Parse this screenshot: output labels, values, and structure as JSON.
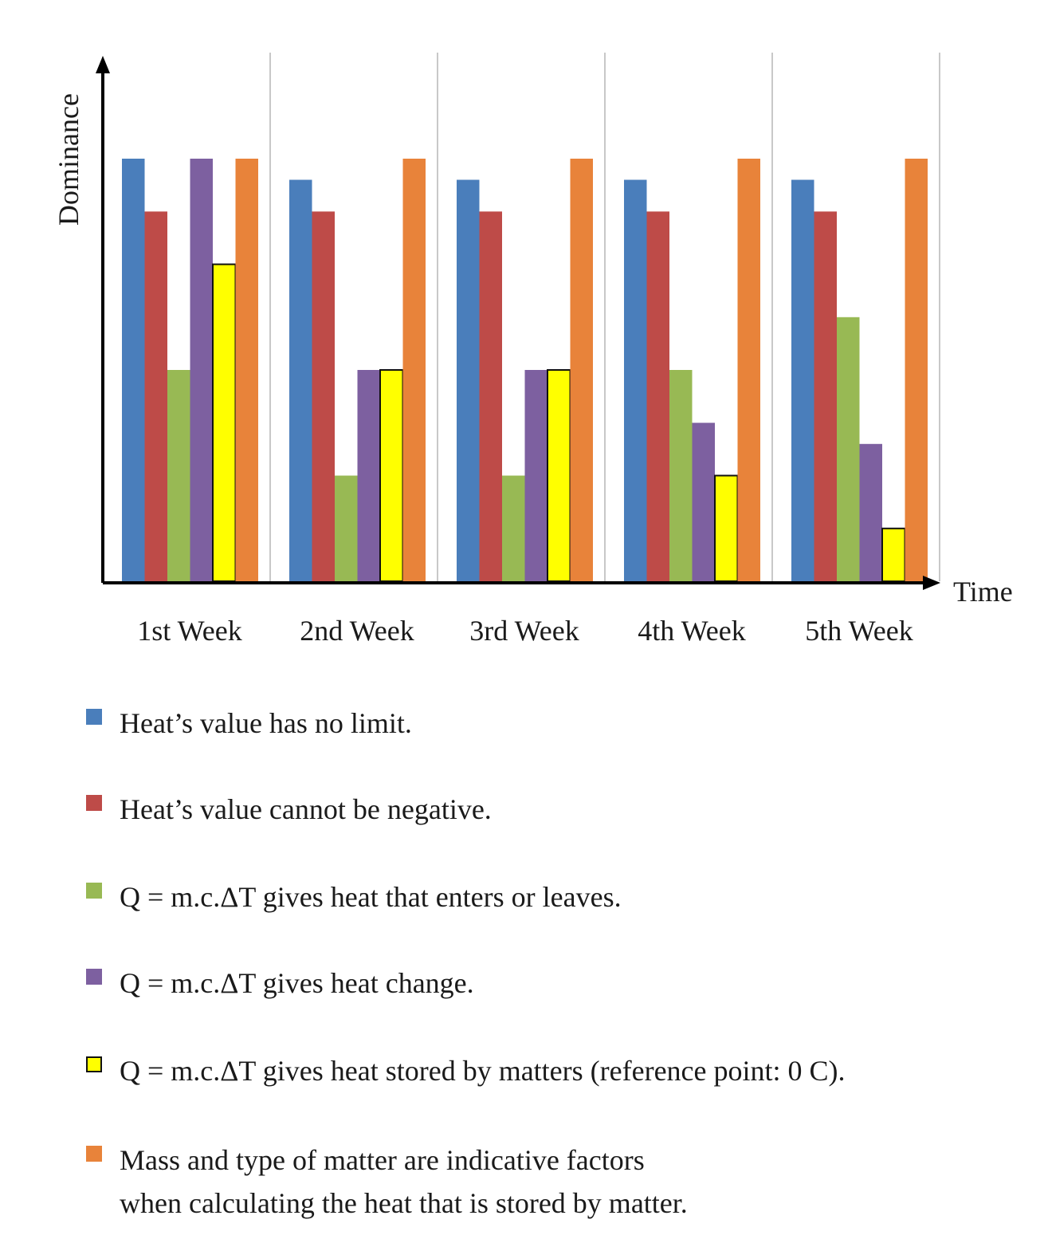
{
  "chart_data": {
    "type": "bar",
    "xlabel": "Time",
    "ylabel": "Dominance",
    "categories": [
      "1st Week",
      "2nd Week",
      "3rd Week",
      "4th Week",
      "5th Week"
    ],
    "ylim": [
      0,
      10
    ],
    "grid": "vertical separators between weeks",
    "legend_position": "bottom",
    "series": [
      {
        "name": "Heat’s value has no limit.",
        "color": "#4A7EBB",
        "values": [
          10,
          9.5,
          9.5,
          9.5,
          9.5
        ]
      },
      {
        "name": "Heat’s value cannot be negative.",
        "color": "#BE4B48",
        "values": [
          8.75,
          8.75,
          8.75,
          8.75,
          8.75
        ]
      },
      {
        "name": "Q = m.c.ΔT gives heat that enters or leaves.",
        "color": "#98B954",
        "values": [
          5,
          2.5,
          2.5,
          5,
          6.25
        ]
      },
      {
        "name": "Q = m.c.ΔT gives heat change.",
        "color": "#7D60A0",
        "values": [
          10,
          5,
          5,
          3.75,
          3.25
        ]
      },
      {
        "name": "Q = m.c.ΔT gives heat stored by matters (reference point: 0 C).",
        "color": "#FFFF00",
        "values": [
          7.5,
          5,
          5,
          2.5,
          1.25
        ]
      },
      {
        "name": "Mass and type of matter are indicative factors\nwhen calculating the heat that is stored by matter.",
        "color": "#E8833A",
        "values": [
          10,
          10,
          10,
          10,
          10
        ]
      }
    ]
  }
}
